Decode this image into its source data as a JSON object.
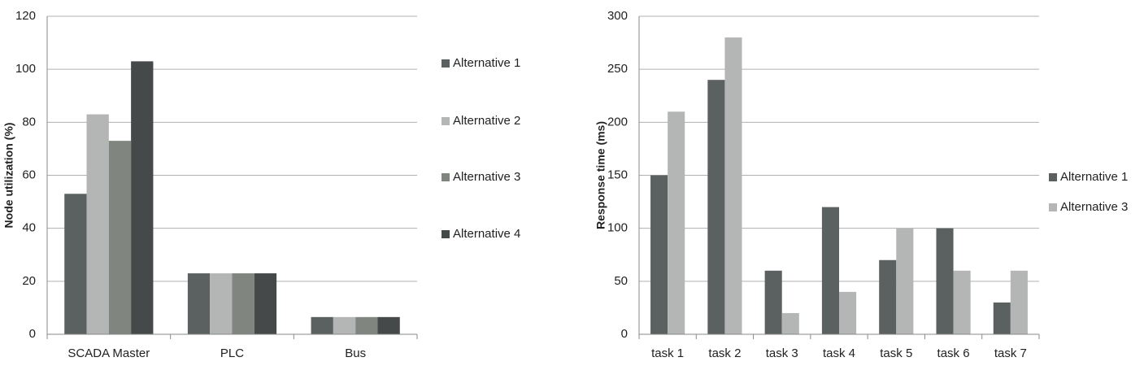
{
  "chart_data": [
    {
      "type": "bar",
      "y_label": "Node utilization (%)",
      "categories": [
        "SCADA Master",
        "PLC",
        "Bus"
      ],
      "series": [
        {
          "name": "Alternative 1",
          "color": "#5b6061",
          "values": [
            53,
            23,
            6.5
          ]
        },
        {
          "name": "Alternative 2",
          "color": "#b4b6b6",
          "values": [
            83,
            23,
            6.5
          ]
        },
        {
          "name": "Alternative 3",
          "color": "#80857f",
          "values": [
            73,
            23,
            6.5
          ]
        },
        {
          "name": "Alternative 4",
          "color": "#45494a",
          "values": [
            103,
            23,
            6.5
          ]
        }
      ],
      "ylim": [
        0,
        120
      ],
      "yticks": [
        0,
        20,
        40,
        60,
        80,
        100,
        120
      ],
      "grid": true,
      "legend": "right"
    },
    {
      "type": "bar",
      "y_label": "Response time (ms)",
      "categories": [
        "task 1",
        "task 2",
        "task 3",
        "task 4",
        "task 5",
        "task 6",
        "task 7"
      ],
      "series": [
        {
          "name": "Alternative 1",
          "color": "#5b6061",
          "values": [
            150,
            240,
            60,
            120,
            70,
            100,
            30
          ]
        },
        {
          "name": "Alternative 3",
          "color": "#b4b6b6",
          "values": [
            210,
            280,
            20,
            40,
            100,
            60,
            60
          ]
        }
      ],
      "ylim": [
        0,
        300
      ],
      "yticks": [
        0,
        50,
        100,
        150,
        200,
        250,
        300
      ],
      "grid": true,
      "legend": "right"
    }
  ]
}
